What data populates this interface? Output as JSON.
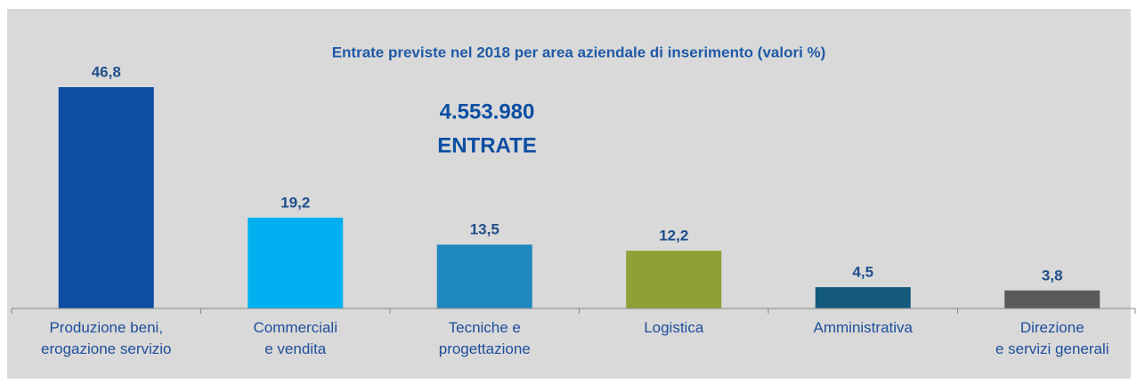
{
  "chart_data": {
    "type": "bar",
    "title": "Entrate previste nel 2018 per area aziendale di inserimento (valori %)",
    "annotations": [
      "4.553.980",
      "ENTRATE"
    ],
    "categories": [
      "Produzione beni,\nerogazione servizio",
      "Commerciali\ne vendita",
      "Tecniche e\nprogettazione",
      "Logistica",
      "Amministrativa",
      "Direzione\ne servizi generali"
    ],
    "values": [
      46.8,
      19.2,
      13.5,
      12.2,
      4.5,
      3.8
    ],
    "value_labels": [
      "46,8",
      "19,2",
      "13,5",
      "12,2",
      "4,5",
      "3,8"
    ],
    "colors": [
      "#0b4ea2",
      "#00b0f0",
      "#1e88bf",
      "#8da136",
      "#145a7c",
      "#595959"
    ],
    "ylim": [
      0,
      50
    ]
  }
}
